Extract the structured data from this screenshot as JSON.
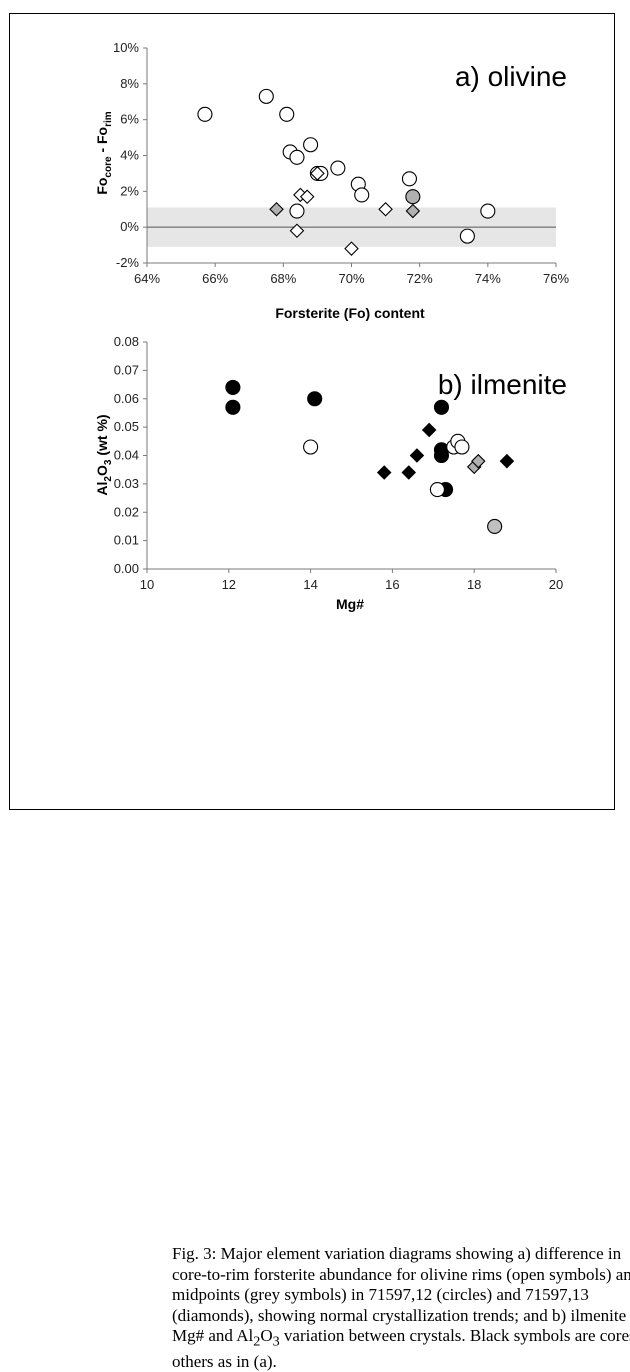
{
  "chart_data": [
    {
      "type": "scatter",
      "panel_label": "a) olivine",
      "xlabel": "Forsterite (Fo) content",
      "ylabel_main": "Fo",
      "ylabel_sub1": "core",
      "ylabel_mid": " - Fo",
      "ylabel_sub2": "rim",
      "xlim": [
        0.64,
        0.76
      ],
      "ylim": [
        -0.02,
        0.1
      ],
      "x_ticks": [
        "64%",
        "66%",
        "68%",
        "70%",
        "72%",
        "74%",
        "76%"
      ],
      "y_ticks": [
        "-2%",
        "0%",
        "2%",
        "4%",
        "6%",
        "8%",
        "10%"
      ],
      "shaded_band": [
        -0.011,
        0.011
      ],
      "zero_line": 0,
      "series": [
        {
          "marker": "circle",
          "fill": "#ffffff",
          "points": [
            [
              0.657,
              0.063
            ],
            [
              0.675,
              0.073
            ],
            [
              0.681,
              0.063
            ],
            [
              0.682,
              0.042
            ],
            [
              0.684,
              0.039
            ],
            [
              0.688,
              0.046
            ],
            [
              0.69,
              0.03
            ],
            [
              0.691,
              0.03
            ],
            [
              0.696,
              0.033
            ],
            [
              0.702,
              0.024
            ],
            [
              0.703,
              0.018
            ],
            [
              0.684,
              0.009
            ],
            [
              0.717,
              0.027
            ],
            [
              0.734,
              -0.005
            ],
            [
              0.74,
              0.009
            ]
          ]
        },
        {
          "marker": "circle",
          "fill": "#b0b0b0",
          "points": [
            [
              0.718,
              0.017
            ]
          ]
        },
        {
          "marker": "diamond",
          "fill": "#ffffff",
          "points": [
            [
              0.685,
              0.018
            ],
            [
              0.687,
              0.017
            ],
            [
              0.684,
              -0.002
            ],
            [
              0.7,
              -0.012
            ],
            [
              0.71,
              0.01
            ],
            [
              0.69,
              0.03
            ]
          ]
        },
        {
          "marker": "diamond",
          "fill": "#b0b0b0",
          "points": [
            [
              0.678,
              0.01
            ],
            [
              0.718,
              0.009
            ]
          ]
        }
      ]
    },
    {
      "type": "scatter",
      "panel_label": "b) ilmenite",
      "xlabel": "Mg#",
      "ylabel_main": "Al",
      "ylabel_sub1": "2",
      "ylabel_mid": "O",
      "ylabel_sub2": "3",
      "ylabel_tail": " (wt %)",
      "xlim": [
        10,
        20
      ],
      "ylim": [
        0,
        0.08
      ],
      "x_ticks": [
        "10",
        "12",
        "14",
        "16",
        "18",
        "20"
      ],
      "y_ticks": [
        "0.00",
        "0.01",
        "0.02",
        "0.03",
        "0.04",
        "0.05",
        "0.06",
        "0.07",
        "0.08"
      ],
      "series": [
        {
          "marker": "circle",
          "fill": "#000000",
          "points": [
            [
              12.1,
              0.064
            ],
            [
              12.1,
              0.057
            ],
            [
              14.1,
              0.06
            ],
            [
              17.2,
              0.057
            ],
            [
              17.2,
              0.042
            ],
            [
              17.2,
              0.04
            ],
            [
              17.3,
              0.028
            ]
          ]
        },
        {
          "marker": "circle",
          "fill": "#ffffff",
          "points": [
            [
              14.0,
              0.043
            ],
            [
              17.1,
              0.028
            ],
            [
              17.5,
              0.043
            ],
            [
              17.6,
              0.045
            ],
            [
              17.7,
              0.043
            ]
          ]
        },
        {
          "marker": "circle",
          "fill": "#c0c0c0",
          "points": [
            [
              18.5,
              0.015
            ]
          ]
        },
        {
          "marker": "diamond",
          "fill": "#000000",
          "points": [
            [
              15.8,
              0.034
            ],
            [
              16.4,
              0.034
            ],
            [
              16.6,
              0.04
            ],
            [
              16.9,
              0.049
            ],
            [
              18.8,
              0.038
            ]
          ]
        },
        {
          "marker": "diamond",
          "fill": "#b0b0b0",
          "points": [
            [
              18.0,
              0.036
            ],
            [
              18.1,
              0.038
            ]
          ]
        }
      ]
    }
  ],
  "caption": "Fig. 3: Major element variation diagrams showing a) difference in core-to-rim forsterite abundance for olivine rims (open symbols) and midpoints (grey symbols) in 71597,12 (circles) and 71597,13 (diamonds), showing normal crystallization trends; and b) ilmenite Mg# and Al2O3 variation between crystals. Black symbols are cores, others as in (a)."
}
